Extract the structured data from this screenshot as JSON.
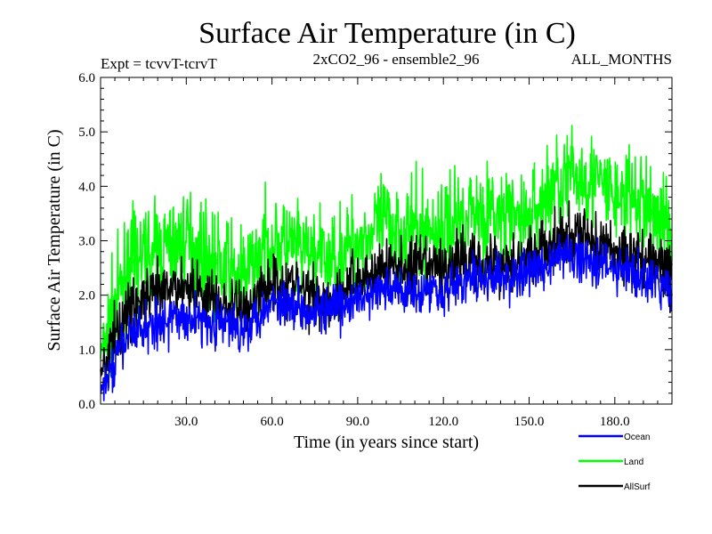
{
  "chart_data": {
    "type": "line",
    "title": "Surface Air Temperature (in C)",
    "subtitle_left": "Expt = tcvvT-tcrvT",
    "subtitle_center": "2xCO2_96 - ensemble2_96",
    "subtitle_right": "ALL_MONTHS",
    "xlabel": "Time (in years since start)",
    "ylabel": "Surface Air Temperature (in C)",
    "xlim": [
      0,
      200
    ],
    "ylim": [
      0,
      6
    ],
    "x_ticks": [
      30,
      60,
      90,
      120,
      150,
      180
    ],
    "x_tick_labels": [
      "30.0",
      "60.0",
      "90.0",
      "120.0",
      "150.0",
      "180.0"
    ],
    "y_ticks": [
      0,
      1,
      2,
      3,
      4,
      5,
      6
    ],
    "y_tick_labels": [
      "0.0",
      "1.0",
      "2.0",
      "3.0",
      "4.0",
      "5.0",
      "6.0"
    ],
    "grid": false,
    "legend_position": "bottom-right",
    "x": [
      0,
      10,
      20,
      30,
      40,
      50,
      60,
      70,
      80,
      90,
      100,
      110,
      120,
      130,
      140,
      150,
      160,
      170,
      180,
      190,
      200
    ],
    "series": [
      {
        "name": "Land",
        "color": "#00ff00",
        "values": [
          0.9,
          2.6,
          2.8,
          3.0,
          2.6,
          2.3,
          3.0,
          2.8,
          2.6,
          3.0,
          3.3,
          3.2,
          3.2,
          3.6,
          3.4,
          3.4,
          4.1,
          4.2,
          3.8,
          3.7,
          3.2
        ]
      },
      {
        "name": "AllSurf",
        "color": "#000000",
        "values": [
          0.6,
          1.8,
          2.0,
          2.2,
          1.9,
          1.7,
          2.3,
          2.1,
          1.9,
          2.3,
          2.5,
          2.5,
          2.5,
          2.7,
          2.6,
          2.7,
          3.0,
          3.1,
          2.8,
          2.7,
          2.4
        ]
      },
      {
        "name": "Ocean",
        "color": "#0000ff",
        "values": [
          0.2,
          1.3,
          1.5,
          1.6,
          1.5,
          1.4,
          1.9,
          1.8,
          1.7,
          1.9,
          2.1,
          2.1,
          2.1,
          2.3,
          2.3,
          2.4,
          2.7,
          2.7,
          2.5,
          2.3,
          2.1
        ]
      }
    ]
  },
  "legend": [
    {
      "label": "Ocean",
      "color": "#0000ff"
    },
    {
      "label": "Land",
      "color": "#00ff00"
    },
    {
      "label": "AllSurf",
      "color": "#000000"
    }
  ]
}
